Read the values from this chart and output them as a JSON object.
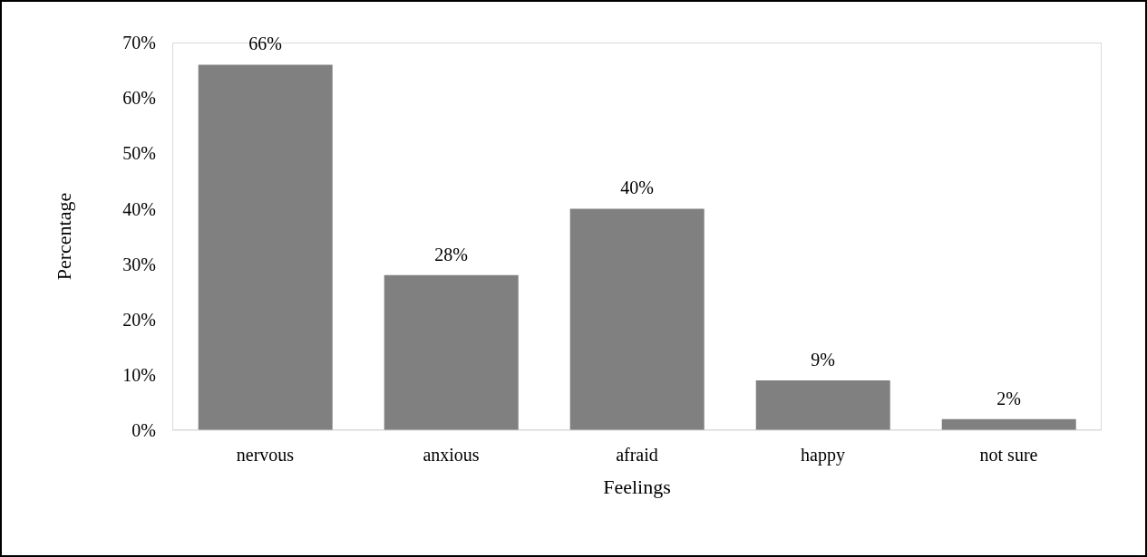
{
  "chart_data": {
    "type": "bar",
    "xlabel": "Feelings",
    "ylabel": "Percentage",
    "categories": [
      "nervous",
      "anxious",
      "afraid",
      "happy",
      "not sure"
    ],
    "values": [
      66,
      28,
      40,
      9,
      2
    ],
    "color": "#808080",
    "value_labels": [
      "66%",
      "28%",
      "40%",
      "9%",
      "2%"
    ],
    "ylim": [
      0,
      70
    ],
    "yticks": [
      {
        "value": 0,
        "label": "0%"
      },
      {
        "value": 10,
        "label": "10%"
      },
      {
        "value": 20,
        "label": "20%"
      },
      {
        "value": 30,
        "label": "30%"
      },
      {
        "value": 40,
        "label": "40%"
      },
      {
        "value": 50,
        "label": "50%"
      },
      {
        "value": 60,
        "label": "60%"
      },
      {
        "value": 70,
        "label": "70%"
      }
    ],
    "grid": false,
    "legend": false
  }
}
